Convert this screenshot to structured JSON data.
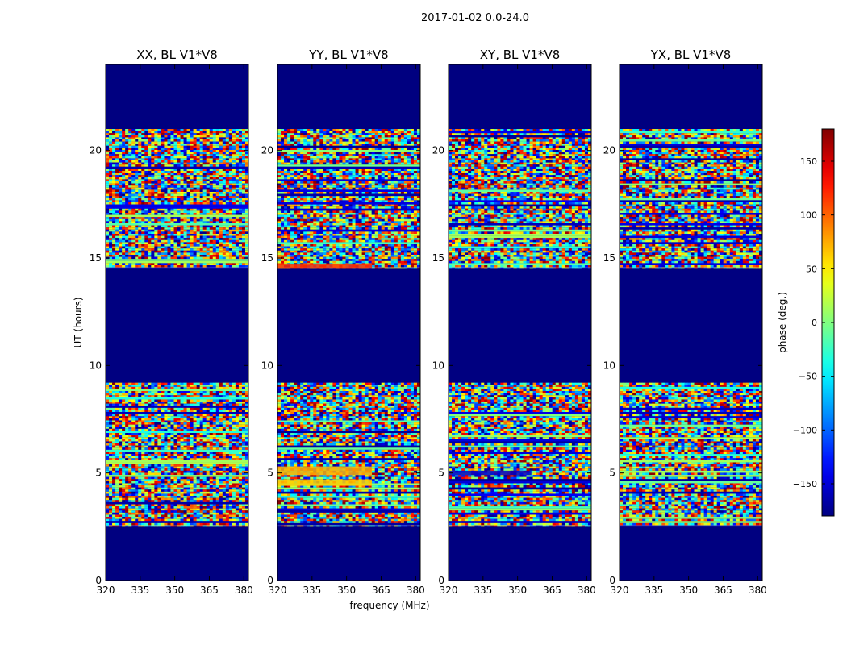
{
  "figure": {
    "suptitle": "2017-01-02 0.0-24.0"
  },
  "chart_data": [
    {
      "type": "heatmap",
      "title": "XX, BL V1*V8",
      "xlabel": "",
      "ylabel": "UT (hours)",
      "xlim": [
        320,
        382
      ],
      "ylim": [
        0,
        24
      ],
      "x_ticks": [
        320,
        335,
        350,
        365,
        380
      ],
      "y_ticks": [
        0,
        5,
        10,
        15,
        20
      ],
      "data_rows_hours": [
        [
          2.5,
          9.2
        ],
        [
          14.5,
          21.0
        ]
      ],
      "special_bands": []
    },
    {
      "type": "heatmap",
      "title": "YY, BL V1*V8",
      "xlabel": "frequency (MHz)",
      "ylabel": "",
      "xlim": [
        320,
        382
      ],
      "ylim": [
        0,
        24
      ],
      "x_ticks": [
        320,
        335,
        350,
        365,
        380
      ],
      "y_ticks": [
        0,
        5,
        10,
        15,
        20
      ],
      "data_rows_hours": [
        [
          2.5,
          9.2
        ],
        [
          14.5,
          21.0
        ]
      ],
      "special_bands": [
        {
          "y0": 4.9,
          "y1": 5.3,
          "x0": 320,
          "x1": 361,
          "color": "#ffb000"
        },
        {
          "y0": 4.4,
          "y1": 4.7,
          "x0": 320,
          "x1": 361,
          "color": "#ffcc00"
        },
        {
          "y0": 14.5,
          "y1": 14.7,
          "x0": 320,
          "x1": 361,
          "color": "#ff3000"
        }
      ]
    },
    {
      "type": "heatmap",
      "title": "XY, BL V1*V8",
      "xlabel": "",
      "ylabel": "",
      "xlim": [
        320,
        382
      ],
      "ylim": [
        0,
        24
      ],
      "x_ticks": [
        320,
        335,
        350,
        365,
        380
      ],
      "y_ticks": [
        0,
        5,
        10,
        15,
        20
      ],
      "data_rows_hours": [
        [
          2.5,
          9.2
        ],
        [
          14.5,
          21.0
        ]
      ],
      "special_bands": [
        {
          "y0": 4.9,
          "y1": 5.1,
          "x0": 320,
          "x1": 356,
          "color": "#0000c8"
        }
      ]
    },
    {
      "type": "heatmap",
      "title": "YX, BL V1*V8",
      "xlabel": "",
      "ylabel": "",
      "xlim": [
        320,
        382
      ],
      "ylim": [
        0,
        24
      ],
      "x_ticks": [
        320,
        335,
        350,
        365,
        380
      ],
      "y_ticks": [
        0,
        5,
        10,
        15,
        20
      ],
      "data_rows_hours": [
        [
          2.5,
          9.2
        ],
        [
          14.5,
          21.0
        ]
      ],
      "special_bands": []
    }
  ],
  "colorbar": {
    "label": "phase (deg.)",
    "vmin": -180,
    "vmax": 180,
    "ticks": [
      -150,
      -100,
      -50,
      0,
      50,
      100,
      150
    ],
    "tick_labels": [
      "−150",
      "−100",
      "−50",
      "0",
      "50",
      "100",
      "150"
    ],
    "colormap": "jet"
  },
  "colors": {
    "background_fill": "#000080"
  }
}
